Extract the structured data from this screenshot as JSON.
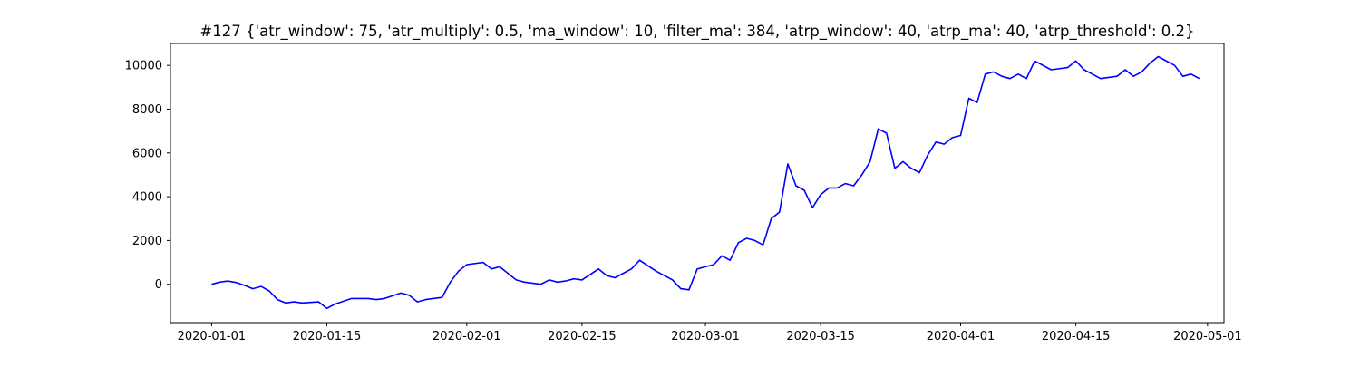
{
  "chart_data": {
    "type": "line",
    "title": "#127 {'atr_window': 75, 'atr_multiply': 0.5, 'ma_window': 10, 'filter_ma': 384, 'atrp_window': 40, 'atrp_ma': 40, 'atrp_threshold': 0.2}",
    "xlabel": "",
    "ylabel": "",
    "x_axis_type": "date",
    "xlim": [
      "2019-12-27",
      "2020-05-03"
    ],
    "ylim": [
      -1750,
      11000
    ],
    "x_ticks": [
      "2020-01-01",
      "2020-01-15",
      "2020-02-01",
      "2020-02-15",
      "2020-03-01",
      "2020-03-15",
      "2020-04-01",
      "2020-04-15",
      "2020-05-01"
    ],
    "y_ticks": [
      0,
      2000,
      4000,
      6000,
      8000,
      10000
    ],
    "y_tick_labels": [
      "0",
      "2000",
      "4000",
      "6000",
      "8000",
      "10000"
    ],
    "grid": false,
    "legend": "none",
    "colors": {
      "line": "#0000ff",
      "axes": "#000000",
      "background": "#ffffff"
    },
    "series": [
      {
        "x": [
          "2020-01-01",
          "2020-01-02",
          "2020-01-03",
          "2020-01-04",
          "2020-01-05",
          "2020-01-06",
          "2020-01-07",
          "2020-01-08",
          "2020-01-09",
          "2020-01-10",
          "2020-01-11",
          "2020-01-12",
          "2020-01-14",
          "2020-01-15",
          "2020-01-16",
          "2020-01-18",
          "2020-01-20",
          "2020-01-21",
          "2020-01-22",
          "2020-01-24",
          "2020-01-25",
          "2020-01-26",
          "2020-01-27",
          "2020-01-29",
          "2020-01-30",
          "2020-01-31",
          "2020-02-01",
          "2020-02-03",
          "2020-02-04",
          "2020-02-05",
          "2020-02-06",
          "2020-02-07",
          "2020-02-08",
          "2020-02-10",
          "2020-02-11",
          "2020-02-12",
          "2020-02-13",
          "2020-02-14",
          "2020-02-15",
          "2020-02-17",
          "2020-02-18",
          "2020-02-19",
          "2020-02-21",
          "2020-02-22",
          "2020-02-24",
          "2020-02-25",
          "2020-02-26",
          "2020-02-27",
          "2020-02-28",
          "2020-02-29",
          "2020-03-01",
          "2020-03-02",
          "2020-03-03",
          "2020-03-04",
          "2020-03-05",
          "2020-03-06",
          "2020-03-07",
          "2020-03-08",
          "2020-03-09",
          "2020-03-10",
          "2020-03-11",
          "2020-03-12",
          "2020-03-13",
          "2020-03-14",
          "2020-03-15",
          "2020-03-16",
          "2020-03-17",
          "2020-03-18",
          "2020-03-19",
          "2020-03-20",
          "2020-03-21",
          "2020-03-22",
          "2020-03-23",
          "2020-03-24",
          "2020-03-25",
          "2020-03-26",
          "2020-03-27",
          "2020-03-28",
          "2020-03-29",
          "2020-03-30",
          "2020-03-31",
          "2020-04-01",
          "2020-04-02",
          "2020-04-03",
          "2020-04-04",
          "2020-04-05",
          "2020-04-06",
          "2020-04-07",
          "2020-04-08",
          "2020-04-09",
          "2020-04-10",
          "2020-04-12",
          "2020-04-14",
          "2020-04-15",
          "2020-04-16",
          "2020-04-17",
          "2020-04-18",
          "2020-04-20",
          "2020-04-21",
          "2020-04-22",
          "2020-04-23",
          "2020-04-24",
          "2020-04-25",
          "2020-04-27",
          "2020-04-28",
          "2020-04-29",
          "2020-04-30"
        ],
        "values": [
          0,
          100,
          150,
          80,
          -50,
          -200,
          -100,
          -300,
          -700,
          -850,
          -800,
          -850,
          -800,
          -1100,
          -900,
          -650,
          -650,
          -700,
          -650,
          -400,
          -500,
          -800,
          -700,
          -600,
          100,
          600,
          900,
          1000,
          700,
          800,
          500,
          200,
          100,
          0,
          200,
          100,
          150,
          250,
          200,
          700,
          400,
          300,
          700,
          1100,
          600,
          400,
          200,
          -200,
          -250,
          700,
          800,
          900,
          1300,
          1100,
          1900,
          2100,
          2000,
          1800,
          3000,
          3300,
          5500,
          4500,
          4300,
          3500,
          4100,
          4400,
          4400,
          4600,
          4500,
          5000,
          5600,
          7100,
          6900,
          5300,
          5600,
          5300,
          5100,
          5900,
          6500,
          6400,
          6700,
          6800,
          8500,
          8300,
          9600,
          9700,
          9500,
          9400,
          9600,
          9400,
          10200,
          9800,
          9900,
          10200,
          9800,
          9600,
          9400,
          9500,
          9800,
          9500,
          9700,
          10100,
          10400,
          10000,
          9500,
          9600,
          9400
        ]
      }
    ]
  }
}
